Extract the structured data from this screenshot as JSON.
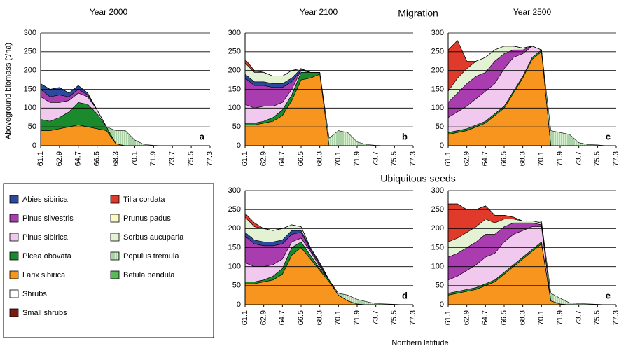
{
  "labels": {
    "top_group": "Migration",
    "bottom_group": "Ubiquitous seeds",
    "y_axis": "Aboveground biomass (t/ha)",
    "x_axis": "Northern latitude"
  },
  "legend": [
    {
      "name": "Abies sibirica",
      "color": "#2b4a9b"
    },
    {
      "name": "Pinus silvestris",
      "color": "#a93db0"
    },
    {
      "name": "Pinus sibirica",
      "color": "#f1c8ee"
    },
    {
      "name": "Picea obovata",
      "color": "#1b8a2c"
    },
    {
      "name": "Larix sibirica",
      "color": "#f7951e"
    },
    {
      "name": "Shrubs",
      "color": "#ffffff"
    },
    {
      "name": "Small shrubs",
      "color": "#7a1a12"
    },
    {
      "name": "Tilia cordata",
      "color": "#e03a2a"
    },
    {
      "name": "Prunus padus",
      "color": "#fafac2"
    },
    {
      "name": "Sorbus aucuparia",
      "color": "#e4f2d4"
    },
    {
      "name": "Populus tremula",
      "color": "#d6efcf",
      "hatch": true
    },
    {
      "name": "Betula pendula",
      "color": "#5cb85c"
    }
  ],
  "chart_data": [
    {
      "type": "area",
      "stacked": true,
      "title": "Year 2000",
      "annotation": "a",
      "x": [
        61.1,
        62.0,
        62.9,
        63.8,
        64.7,
        65.6,
        66.5,
        67.4,
        68.3,
        69.2,
        70.1,
        71.0,
        71.9,
        72.8,
        73.7,
        74.6,
        75.5,
        76.4,
        77.3
      ],
      "xlim": [
        61.1,
        77.3
      ],
      "xticks": [
        61.1,
        62.9,
        64.7,
        66.5,
        68.3,
        70.1,
        71.9,
        73.7,
        75.5,
        77.3
      ],
      "ylim": [
        0,
        300
      ],
      "yticks": [
        0,
        50,
        100,
        150,
        200,
        250,
        300
      ],
      "grid": true,
      "series": [
        {
          "name": "Larix sibirica",
          "values": [
            40,
            40,
            45,
            50,
            55,
            50,
            45,
            40,
            5,
            0,
            0,
            0,
            0,
            0,
            0,
            0,
            0,
            0,
            0
          ]
        },
        {
          "name": "Picea obovata",
          "values": [
            30,
            25,
            30,
            40,
            60,
            60,
            40,
            10,
            0,
            0,
            0,
            0,
            0,
            0,
            0,
            0,
            0,
            0,
            0
          ]
        },
        {
          "name": "Pinus sibirica",
          "values": [
            60,
            50,
            40,
            30,
            25,
            20,
            10,
            0,
            0,
            0,
            0,
            0,
            0,
            0,
            0,
            0,
            0,
            0,
            0
          ]
        },
        {
          "name": "Pinus silvestris",
          "values": [
            20,
            15,
            20,
            10,
            10,
            5,
            0,
            0,
            0,
            0,
            0,
            0,
            0,
            0,
            0,
            0,
            0,
            0,
            0
          ]
        },
        {
          "name": "Abies sibirica",
          "values": [
            15,
            20,
            20,
            10,
            10,
            5,
            0,
            0,
            0,
            0,
            0,
            0,
            0,
            0,
            0,
            0,
            0,
            0,
            0
          ]
        },
        {
          "name": "Populus tremula",
          "values": [
            0,
            0,
            0,
            0,
            0,
            0,
            0,
            0,
            35,
            40,
            15,
            3,
            1,
            0,
            0,
            0,
            0,
            0,
            0
          ]
        }
      ]
    },
    {
      "type": "area",
      "stacked": true,
      "title": "Year 2100",
      "annotation": "b",
      "x": [
        61.1,
        62.0,
        62.9,
        63.8,
        64.7,
        65.6,
        66.5,
        67.4,
        68.3,
        69.2,
        70.1,
        71.0,
        71.9,
        72.8,
        73.7,
        74.6,
        75.5,
        76.4,
        77.3
      ],
      "xlim": [
        61.1,
        77.3
      ],
      "xticks": [
        61.1,
        62.9,
        64.7,
        66.5,
        68.3,
        70.1,
        71.9,
        73.7,
        75.5,
        77.3
      ],
      "ylim": [
        0,
        300
      ],
      "yticks": [
        0,
        50,
        100,
        150,
        200,
        250,
        300
      ],
      "grid": true,
      "series": [
        {
          "name": "Larix sibirica",
          "values": [
            55,
            55,
            60,
            65,
            80,
            120,
            175,
            180,
            190,
            0,
            0,
            0,
            0,
            0,
            0,
            0,
            0,
            0,
            0
          ]
        },
        {
          "name": "Picea obovata",
          "values": [
            5,
            5,
            5,
            10,
            15,
            15,
            20,
            15,
            5,
            0,
            0,
            0,
            0,
            0,
            0,
            0,
            0,
            0,
            0
          ]
        },
        {
          "name": "Pinus sibirica",
          "values": [
            50,
            40,
            40,
            30,
            20,
            15,
            5,
            0,
            0,
            0,
            0,
            0,
            0,
            0,
            0,
            0,
            0,
            0,
            0
          ]
        },
        {
          "name": "Pinus silvestris",
          "values": [
            70,
            60,
            55,
            50,
            40,
            20,
            0,
            0,
            0,
            0,
            0,
            0,
            0,
            0,
            0,
            0,
            0,
            0,
            0
          ]
        },
        {
          "name": "Abies sibirica",
          "values": [
            10,
            10,
            10,
            10,
            10,
            10,
            5,
            0,
            0,
            0,
            0,
            0,
            0,
            0,
            0,
            0,
            0,
            0,
            0
          ]
        },
        {
          "name": "Sorbus aucuparia",
          "values": [
            30,
            25,
            25,
            20,
            20,
            20,
            0,
            0,
            0,
            0,
            0,
            0,
            0,
            0,
            0,
            0,
            0,
            0,
            0
          ]
        },
        {
          "name": "Tilia cordata",
          "values": [
            10,
            5,
            0,
            0,
            0,
            0,
            0,
            0,
            0,
            0,
            0,
            0,
            0,
            0,
            0,
            0,
            0,
            0,
            0
          ]
        },
        {
          "name": "Populus tremula",
          "values": [
            0,
            0,
            0,
            0,
            0,
            0,
            0,
            0,
            0,
            20,
            40,
            35,
            10,
            3,
            1,
            0,
            0,
            0,
            0
          ]
        }
      ]
    },
    {
      "type": "area",
      "stacked": true,
      "title": "Year 2500",
      "annotation": "c",
      "x": [
        61.1,
        62.0,
        62.9,
        63.8,
        64.7,
        65.6,
        66.5,
        67.4,
        68.3,
        69.2,
        70.1,
        71.0,
        71.9,
        72.8,
        73.7,
        74.6,
        75.5,
        76.4,
        77.3
      ],
      "xlim": [
        61.1,
        77.3
      ],
      "xticks": [
        61.1,
        62.9,
        64.7,
        66.5,
        68.3,
        70.1,
        71.9,
        73.7,
        75.5,
        77.3
      ],
      "ylim": [
        0,
        300
      ],
      "yticks": [
        0,
        50,
        100,
        150,
        200,
        250,
        300
      ],
      "grid": true,
      "series": [
        {
          "name": "Larix sibirica",
          "values": [
            30,
            35,
            40,
            50,
            60,
            80,
            100,
            140,
            180,
            230,
            250,
            0,
            0,
            0,
            0,
            0,
            0,
            0,
            0
          ]
        },
        {
          "name": "Picea obovata",
          "values": [
            5,
            5,
            5,
            5,
            5,
            5,
            5,
            5,
            5,
            5,
            5,
            0,
            0,
            0,
            0,
            0,
            0,
            0,
            0
          ]
        },
        {
          "name": "Pinus sibirica",
          "values": [
            40,
            50,
            60,
            70,
            80,
            80,
            100,
            90,
            60,
            30,
            0,
            0,
            0,
            0,
            0,
            0,
            0,
            0,
            0
          ]
        },
        {
          "name": "Pinus silvestris",
          "values": [
            40,
            50,
            60,
            60,
            50,
            60,
            40,
            20,
            10,
            0,
            0,
            0,
            0,
            0,
            0,
            0,
            0,
            0,
            0
          ]
        },
        {
          "name": "Sorbus aucuparia",
          "values": [
            30,
            40,
            40,
            40,
            40,
            30,
            20,
            10,
            5,
            0,
            0,
            0,
            0,
            0,
            0,
            0,
            0,
            0,
            0
          ]
        },
        {
          "name": "Tilia cordata",
          "values": [
            110,
            100,
            20,
            0,
            0,
            0,
            0,
            0,
            0,
            0,
            0,
            0,
            0,
            0,
            0,
            0,
            0,
            0,
            0
          ]
        },
        {
          "name": "Populus tremula",
          "values": [
            0,
            0,
            0,
            0,
            0,
            0,
            0,
            0,
            0,
            0,
            0,
            40,
            35,
            30,
            8,
            3,
            2,
            0,
            0
          ]
        }
      ]
    },
    {
      "type": "area",
      "stacked": true,
      "annotation": "d",
      "x": [
        61.1,
        62.0,
        62.9,
        63.8,
        64.7,
        65.6,
        66.5,
        67.4,
        68.3,
        69.2,
        70.1,
        71.0,
        71.9,
        72.8,
        73.7,
        74.6,
        75.5,
        76.4,
        77.3
      ],
      "xlim": [
        61.1,
        77.3
      ],
      "xticks": [
        61.1,
        62.9,
        64.7,
        66.5,
        68.3,
        70.1,
        71.9,
        73.7,
        75.5,
        77.3
      ],
      "ylim": [
        0,
        300
      ],
      "yticks": [
        0,
        50,
        100,
        150,
        200,
        250,
        300
      ],
      "grid": true,
      "series": [
        {
          "name": "Larix sibirica",
          "values": [
            55,
            55,
            60,
            65,
            80,
            130,
            150,
            120,
            90,
            60,
            25,
            10,
            2,
            0,
            0,
            0,
            0,
            0,
            0
          ]
        },
        {
          "name": "Picea obovata",
          "values": [
            5,
            5,
            5,
            10,
            15,
            20,
            15,
            10,
            5,
            5,
            0,
            0,
            0,
            0,
            0,
            0,
            0,
            0,
            0
          ]
        },
        {
          "name": "Pinus sibirica",
          "values": [
            50,
            40,
            35,
            30,
            25,
            15,
            10,
            10,
            5,
            0,
            0,
            0,
            0,
            0,
            0,
            0,
            0,
            0,
            0
          ]
        },
        {
          "name": "Pinus silvestris",
          "values": [
            70,
            60,
            55,
            50,
            40,
            20,
            15,
            5,
            5,
            0,
            0,
            0,
            0,
            0,
            0,
            0,
            0,
            0,
            0
          ]
        },
        {
          "name": "Abies sibirica",
          "values": [
            10,
            10,
            10,
            10,
            10,
            10,
            5,
            5,
            5,
            0,
            0,
            0,
            0,
            0,
            0,
            0,
            0,
            0,
            0
          ]
        },
        {
          "name": "Sorbus aucuparia",
          "values": [
            40,
            35,
            35,
            30,
            30,
            15,
            10,
            0,
            0,
            0,
            0,
            0,
            0,
            0,
            0,
            0,
            0,
            0,
            0
          ]
        },
        {
          "name": "Tilia cordata",
          "values": [
            10,
            10,
            0,
            0,
            0,
            0,
            0,
            0,
            0,
            0,
            0,
            0,
            0,
            0,
            0,
            0,
            0,
            0,
            0
          ]
        },
        {
          "name": "Populus tremula",
          "values": [
            0,
            0,
            0,
            0,
            0,
            0,
            0,
            0,
            0,
            0,
            5,
            15,
            12,
            8,
            3,
            2,
            1,
            0,
            0
          ]
        }
      ]
    },
    {
      "type": "area",
      "stacked": true,
      "annotation": "e",
      "x": [
        61.1,
        62.0,
        62.9,
        63.8,
        64.7,
        65.6,
        66.5,
        67.4,
        68.3,
        69.2,
        70.1,
        71.0,
        71.9,
        72.8,
        73.7,
        74.6,
        75.5,
        76.4,
        77.3
      ],
      "xlim": [
        61.1,
        77.3
      ],
      "xticks": [
        61.1,
        62.9,
        64.7,
        66.5,
        68.3,
        70.1,
        71.9,
        73.7,
        75.5,
        77.3
      ],
      "ylim": [
        0,
        300
      ],
      "yticks": [
        0,
        50,
        100,
        150,
        200,
        250,
        300
      ],
      "grid": true,
      "series": [
        {
          "name": "Larix sibirica",
          "values": [
            25,
            30,
            35,
            40,
            50,
            60,
            80,
            100,
            120,
            140,
            160,
            10,
            2,
            0,
            0,
            0,
            0,
            0,
            0
          ]
        },
        {
          "name": "Picea obovata",
          "values": [
            5,
            5,
            5,
            5,
            5,
            5,
            5,
            5,
            5,
            5,
            5,
            0,
            0,
            0,
            0,
            0,
            0,
            0,
            0
          ]
        },
        {
          "name": "Pinus sibirica",
          "values": [
            35,
            40,
            50,
            60,
            70,
            70,
            80,
            80,
            70,
            60,
            40,
            0,
            0,
            0,
            0,
            0,
            0,
            0,
            0
          ]
        },
        {
          "name": "Pinus silvestris",
          "values": [
            60,
            60,
            60,
            60,
            60,
            50,
            40,
            30,
            20,
            10,
            5,
            0,
            0,
            0,
            0,
            0,
            0,
            0,
            0
          ]
        },
        {
          "name": "Sorbus aucuparia",
          "values": [
            40,
            40,
            40,
            40,
            40,
            30,
            20,
            10,
            5,
            5,
            5,
            0,
            0,
            0,
            0,
            0,
            0,
            0,
            0
          ]
        },
        {
          "name": "Tilia cordata",
          "values": [
            100,
            90,
            60,
            45,
            35,
            20,
            10,
            5,
            0,
            0,
            0,
            0,
            0,
            0,
            0,
            0,
            0,
            0,
            0
          ]
        },
        {
          "name": "Populus tremula",
          "values": [
            0,
            0,
            0,
            0,
            0,
            0,
            0,
            0,
            0,
            0,
            5,
            20,
            15,
            5,
            3,
            2,
            1,
            0,
            0
          ]
        }
      ]
    }
  ]
}
